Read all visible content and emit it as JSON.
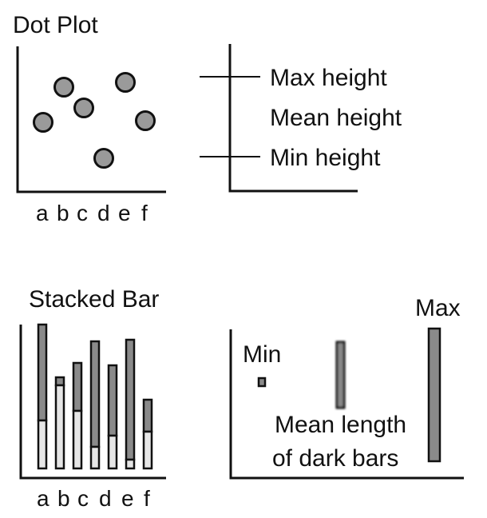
{
  "colors": {
    "ink": "#111111",
    "dot_fill": "#9a9a9a",
    "dark_bar": "#8a8a8a",
    "light_bar": "#e6e6e6",
    "background": "#ffffff"
  },
  "dot_plot": {
    "title": "Dot Plot",
    "categories": [
      "a",
      "b",
      "c",
      "d",
      "e",
      "f"
    ],
    "legend": {
      "max_label": "Max height",
      "mean_label": "Mean height",
      "min_label": "Min height"
    }
  },
  "stacked_bar": {
    "title": "Stacked Bar",
    "categories": [
      "a",
      "b",
      "c",
      "d",
      "e",
      "f"
    ],
    "legend": {
      "min_label": "Min",
      "max_label": "Max",
      "mean_label_line1": "Mean length",
      "mean_label_line2": "of dark bars"
    }
  }
}
